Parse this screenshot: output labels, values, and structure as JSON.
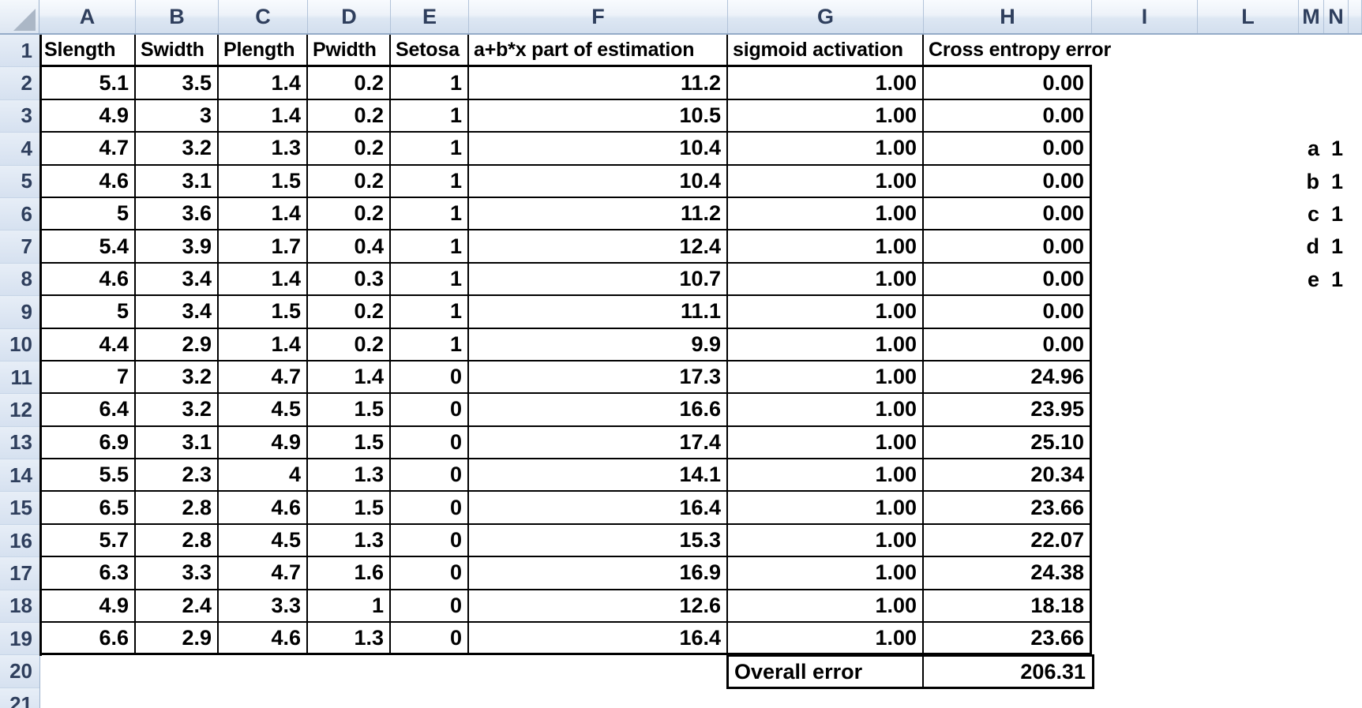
{
  "app": {
    "type": "spreadsheet"
  },
  "colors": {
    "cell_border": "#000000",
    "header_text": "#2f3f5d",
    "header_bg_top": "#f8fbfe",
    "header_bg_bottom": "#d3dfee",
    "header_edge": "#94abc8",
    "data_text": "#000000",
    "background": "#ffffff"
  },
  "sheet": {
    "column_letters": [
      "A",
      "B",
      "C",
      "D",
      "E",
      "F",
      "G",
      "H",
      "I",
      "L",
      "M",
      "N"
    ],
    "row_numbers": [
      "1",
      "2",
      "3",
      "4",
      "5",
      "6",
      "7",
      "8",
      "9",
      "10",
      "11",
      "12",
      "13",
      "14",
      "15",
      "16",
      "17",
      "18",
      "19",
      "20",
      "21"
    ],
    "header_row": [
      "Slength",
      "Swidth",
      "Plength",
      "Pwidth",
      "Setosa",
      "a+b*x part of estimation",
      "sigmoid activation",
      "Cross entropy error"
    ],
    "rows": [
      {
        "n": "2",
        "cells": [
          "5.1",
          "3.5",
          "1.4",
          "0.2",
          "1",
          "11.2",
          "1.00",
          "0.00"
        ]
      },
      {
        "n": "3",
        "cells": [
          "4.9",
          "3",
          "1.4",
          "0.2",
          "1",
          "10.5",
          "1.00",
          "0.00"
        ]
      },
      {
        "n": "4",
        "cells": [
          "4.7",
          "3.2",
          "1.3",
          "0.2",
          "1",
          "10.4",
          "1.00",
          "0.00"
        ]
      },
      {
        "n": "5",
        "cells": [
          "4.6",
          "3.1",
          "1.5",
          "0.2",
          "1",
          "10.4",
          "1.00",
          "0.00"
        ]
      },
      {
        "n": "6",
        "cells": [
          "5",
          "3.6",
          "1.4",
          "0.2",
          "1",
          "11.2",
          "1.00",
          "0.00"
        ]
      },
      {
        "n": "7",
        "cells": [
          "5.4",
          "3.9",
          "1.7",
          "0.4",
          "1",
          "12.4",
          "1.00",
          "0.00"
        ]
      },
      {
        "n": "8",
        "cells": [
          "4.6",
          "3.4",
          "1.4",
          "0.3",
          "1",
          "10.7",
          "1.00",
          "0.00"
        ]
      },
      {
        "n": "9",
        "cells": [
          "5",
          "3.4",
          "1.5",
          "0.2",
          "1",
          "11.1",
          "1.00",
          "0.00"
        ]
      },
      {
        "n": "10",
        "cells": [
          "4.4",
          "2.9",
          "1.4",
          "0.2",
          "1",
          "9.9",
          "1.00",
          "0.00"
        ]
      },
      {
        "n": "11",
        "cells": [
          "7",
          "3.2",
          "4.7",
          "1.4",
          "0",
          "17.3",
          "1.00",
          "24.96"
        ]
      },
      {
        "n": "12",
        "cells": [
          "6.4",
          "3.2",
          "4.5",
          "1.5",
          "0",
          "16.6",
          "1.00",
          "23.95"
        ]
      },
      {
        "n": "13",
        "cells": [
          "6.9",
          "3.1",
          "4.9",
          "1.5",
          "0",
          "17.4",
          "1.00",
          "25.10"
        ]
      },
      {
        "n": "14",
        "cells": [
          "5.5",
          "2.3",
          "4",
          "1.3",
          "0",
          "14.1",
          "1.00",
          "20.34"
        ]
      },
      {
        "n": "15",
        "cells": [
          "6.5",
          "2.8",
          "4.6",
          "1.5",
          "0",
          "16.4",
          "1.00",
          "23.66"
        ]
      },
      {
        "n": "16",
        "cells": [
          "5.7",
          "2.8",
          "4.5",
          "1.3",
          "0",
          "15.3",
          "1.00",
          "22.07"
        ]
      },
      {
        "n": "17",
        "cells": [
          "6.3",
          "3.3",
          "4.7",
          "1.6",
          "0",
          "16.9",
          "1.00",
          "24.38"
        ]
      },
      {
        "n": "18",
        "cells": [
          "4.9",
          "2.4",
          "3.3",
          "1",
          "0",
          "12.6",
          "1.00",
          "18.18"
        ]
      },
      {
        "n": "19",
        "cells": [
          "6.6",
          "2.9",
          "4.6",
          "1.3",
          "0",
          "16.4",
          "1.00",
          "23.66"
        ]
      }
    ],
    "summary": {
      "row": "20",
      "label": "Overall error",
      "value": "206.31"
    },
    "side_values": [
      {
        "row": "4",
        "label": "a",
        "value": "1"
      },
      {
        "row": "5",
        "label": "b",
        "value": "1"
      },
      {
        "row": "6",
        "label": "c",
        "value": "1"
      },
      {
        "row": "7",
        "label": "d",
        "value": "1"
      },
      {
        "row": "8",
        "label": "e",
        "value": "1"
      }
    ]
  }
}
